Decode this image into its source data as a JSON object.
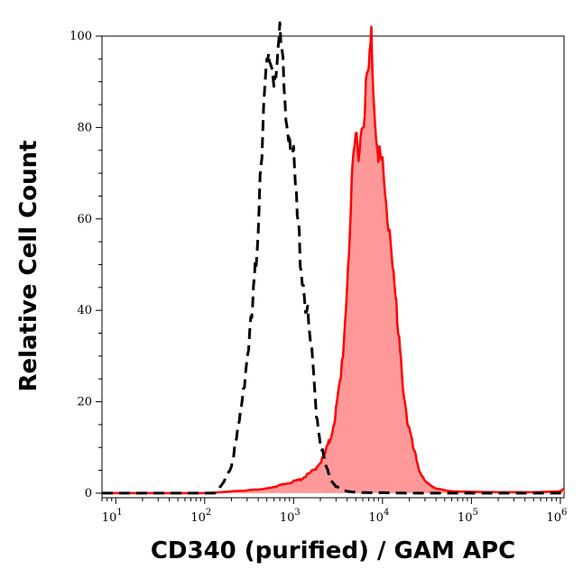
{
  "chart_data": {
    "type": "area",
    "title": "",
    "xlabel": "CD340 (purified) / GAM APC",
    "ylabel": "Relative Cell Count",
    "x_scale": "log",
    "xlim": [
      7,
      1100000
    ],
    "ylim": [
      -1,
      100
    ],
    "grid": false,
    "legend": "none",
    "x_ticks": [
      {
        "base": "10",
        "exp": "1",
        "value": 10
      },
      {
        "base": "10",
        "exp": "2",
        "value": 100
      },
      {
        "base": "10",
        "exp": "3",
        "value": 1000
      },
      {
        "base": "10",
        "exp": "4",
        "value": 10000
      },
      {
        "base": "10",
        "exp": "5",
        "value": 100000
      },
      {
        "base": "10",
        "exp": "6",
        "value": 1000000
      }
    ],
    "y_ticks": [
      {
        "label": "0",
        "value": 0
      },
      {
        "label": "20",
        "value": 20
      },
      {
        "label": "40",
        "value": 40
      },
      {
        "label": "60",
        "value": 60
      },
      {
        "label": "80",
        "value": 80
      },
      {
        "label": "100",
        "value": 100
      }
    ],
    "series": [
      {
        "style": "dashed-black-line",
        "color": "#000000",
        "x": [
          7,
          30,
          100,
          130,
          160,
          200,
          240,
          280,
          330,
          380,
          420,
          460,
          500,
          550,
          600,
          650,
          700,
          760,
          820,
          900,
          1000,
          1100,
          1250,
          1400,
          1600,
          1800,
          2000,
          2300,
          2600,
          3000,
          3500,
          4000,
          5000,
          7000,
          10000,
          20000,
          100000,
          1000000,
          1100000
        ],
        "values": [
          0,
          0,
          0,
          0,
          2,
          6,
          14,
          25,
          36,
          50,
          70,
          84,
          92,
          95,
          91,
          96,
          99,
          92,
          82,
          80,
          72,
          60,
          48,
          40,
          30,
          18,
          11,
          6,
          3,
          1.5,
          0.8,
          0.4,
          0.2,
          0.1,
          0.1,
          0,
          0,
          0,
          0
        ]
      },
      {
        "style": "red-filled",
        "color": "#ff0000",
        "fill": "#ff9999",
        "x": [
          7,
          100,
          150,
          200,
          300,
          500,
          800,
          1200,
          1700,
          2200,
          2600,
          3000,
          3400,
          3800,
          4200,
          4600,
          5000,
          5500,
          6000,
          6500,
          7000,
          7500,
          8000,
          8500,
          9000,
          10000,
          11000,
          12000,
          13000,
          14000,
          15000,
          17000,
          19000,
          22000,
          26000,
          30000,
          40000,
          60000,
          100000,
          200000,
          500000,
          1000000,
          1100000
        ],
        "values": [
          0,
          0,
          0.2,
          0.4,
          0.6,
          1,
          2,
          3,
          5,
          8,
          12,
          18,
          25,
          38,
          55,
          68,
          78,
          76,
          82,
          88,
          92,
          100,
          86,
          80,
          76,
          70,
          62,
          58,
          52,
          42,
          34,
          24,
          16,
          10,
          5,
          2.5,
          1,
          0.4,
          0.3,
          0.2,
          0.2,
          0.4,
          1
        ]
      }
    ]
  }
}
